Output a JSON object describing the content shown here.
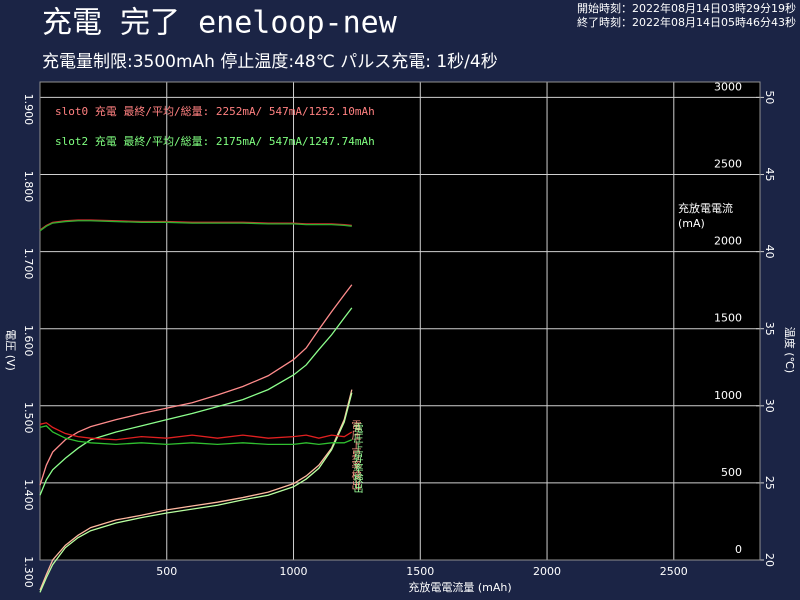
{
  "chart_data": {
    "type": "line",
    "title": "充電 完了 eneloop-new",
    "subtitle": "充電量制限:3500mAh 停止温度:48℃ パルス充電: 1秒/4秒",
    "timestamps": [
      "開始時刻：2022年08月14日03時29分19秒",
      "終了時刻：2022年08月14日05時46分43秒"
    ],
    "xlabel": "充放電電流量 (mAh)",
    "ylabel": "電圧 (V)",
    "y2label": [
      "充放電電流",
      "(mA)"
    ],
    "y3label": "温度 (℃)",
    "annotations": [
      {
        "text": "slot0  充電  最終/平均/総量: 2252mA/ 547mA/1252.10mAh",
        "color": "#ff8080"
      },
      {
        "text": "slot2  充電  最終/平均/総量: 2175mA/ 547mA/1247.74mAh",
        "color": "#80ff80"
      }
    ],
    "markers": [
      {
        "text": "電圧上昇率検出",
        "color": "#ff9a8a"
      },
      {
        "text": "電圧上昇率検出",
        "color": "#9aff9a"
      }
    ],
    "xlim": [
      0,
      2840
    ],
    "xticks": [
      500,
      1000,
      1500,
      2000,
      2500
    ],
    "ylim": [
      1.3,
      1.92
    ],
    "yticks": [
      {
        "value": 1.3,
        "label": "1.300"
      },
      {
        "value": 1.4,
        "label": "1.400"
      },
      {
        "value": 1.5,
        "label": "1.500"
      },
      {
        "value": 1.6,
        "label": "1.600"
      },
      {
        "value": 1.7,
        "label": "1.700"
      },
      {
        "value": 1.8,
        "label": "1.800"
      },
      {
        "value": 1.9,
        "label": "1.900"
      }
    ],
    "y2lim": [
      0,
      3100
    ],
    "y2ticks": [
      0,
      500,
      1000,
      1500,
      2000,
      2500,
      3000
    ],
    "y3lim": [
      20,
      51
    ],
    "y3ticks": [
      20,
      25,
      30,
      35,
      40,
      45,
      50
    ],
    "grid": true,
    "x": [
      0,
      25,
      50,
      100,
      150,
      200,
      300,
      400,
      500,
      600,
      700,
      800,
      900,
      1000,
      1050,
      1100,
      1150,
      1200,
      1230
    ],
    "series": [
      {
        "color": "#ff8c8c",
        "axis": "y",
        "values": [
          1.397,
          1.423,
          1.44,
          1.456,
          1.466,
          1.473,
          1.482,
          1.49,
          1.497,
          1.504,
          1.514,
          1.525,
          1.539,
          1.56,
          1.575,
          1.599,
          1.622,
          1.644,
          1.657
        ]
      },
      {
        "color": "#8cff8c",
        "axis": "y",
        "values": [
          1.384,
          1.404,
          1.417,
          1.432,
          1.445,
          1.456,
          1.466,
          1.474,
          1.482,
          1.49,
          1.499,
          1.508,
          1.521,
          1.54,
          1.553,
          1.573,
          1.592,
          1.614,
          1.627
        ]
      },
      {
        "color": "#ffb8a0",
        "axis": "y",
        "values": [
          1.261,
          1.281,
          1.3,
          1.319,
          1.332,
          1.342,
          1.352,
          1.358,
          1.365,
          1.37,
          1.375,
          1.381,
          1.388,
          1.399,
          1.409,
          1.423,
          1.445,
          1.482,
          1.521
        ]
      },
      {
        "color": "#b8ffa0",
        "axis": "y",
        "values": [
          1.258,
          1.277,
          1.294,
          1.316,
          1.329,
          1.338,
          1.348,
          1.355,
          1.361,
          1.366,
          1.371,
          1.378,
          1.384,
          1.395,
          1.405,
          1.419,
          1.443,
          1.479,
          1.517
        ]
      },
      {
        "color": "#d03030",
        "axis": "y2",
        "values": [
          2140,
          2170,
          2190,
          2200,
          2205,
          2205,
          2200,
          2195,
          2195,
          2190,
          2190,
          2190,
          2185,
          2185,
          2180,
          2180,
          2180,
          2175,
          2170
        ]
      },
      {
        "color": "#30b030",
        "axis": "y2",
        "values": [
          2135,
          2165,
          2185,
          2195,
          2200,
          2200,
          2195,
          2190,
          2190,
          2185,
          2185,
          2185,
          2180,
          2180,
          2175,
          2175,
          2175,
          2170,
          2165
        ]
      },
      {
        "color": "#e02020",
        "axis": "y3",
        "values": [
          28.8,
          28.9,
          28.6,
          28.2,
          28.0,
          27.9,
          27.8,
          28.0,
          27.9,
          28.1,
          27.9,
          28.1,
          27.9,
          28.0,
          28.1,
          27.9,
          28.1,
          28.0,
          28.3
        ]
      },
      {
        "color": "#30c030",
        "axis": "y3",
        "values": [
          28.6,
          28.7,
          28.3,
          27.9,
          27.7,
          27.6,
          27.5,
          27.6,
          27.5,
          27.6,
          27.5,
          27.6,
          27.5,
          27.5,
          27.6,
          27.5,
          27.6,
          27.6,
          27.8
        ]
      }
    ]
  }
}
